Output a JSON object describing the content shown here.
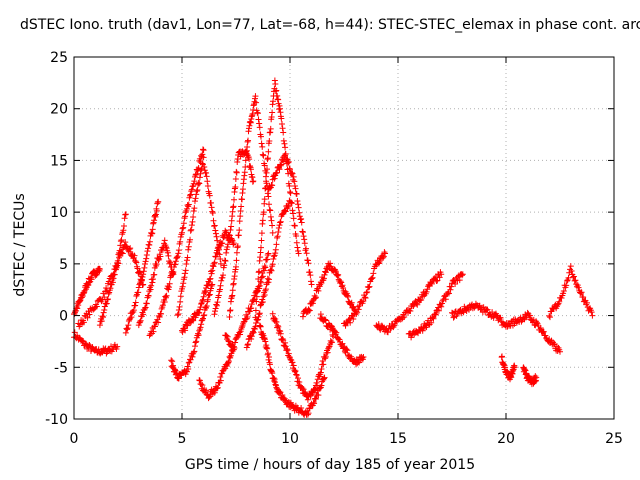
{
  "chart_data": {
    "type": "scatter",
    "title": "dSTEC Iono. truth (dav1, Lon=77, Lat=-68, h=44): STEC-STEC_elemax in phase cont. arc",
    "xlabel": "GPS time / hours of day 185 of year 2015",
    "ylabel": "dSTEC  / TECUs",
    "xlim": [
      0,
      25
    ],
    "ylim": [
      -10,
      25
    ],
    "xticks": [
      "0",
      "5",
      "10",
      "15",
      "20",
      "25"
    ],
    "yticks": [
      "-10",
      "-5",
      "0",
      "5",
      "10",
      "15",
      "20",
      "25"
    ],
    "grid": true,
    "marker": "+",
    "color": "#ff0000",
    "series": [
      {
        "x": [
          0.0,
          0.5,
          1.0,
          1.5,
          2.0
        ],
        "y": [
          -1.8,
          -2.8,
          -3.5,
          -3.4,
          -3.0
        ]
      },
      {
        "x": [
          0.0,
          0.3,
          0.6,
          0.9,
          1.2
        ],
        "y": [
          0.2,
          1.5,
          3.0,
          4.0,
          4.5
        ]
      },
      {
        "x": [
          0.2,
          0.8,
          1.4,
          2.0,
          2.4
        ],
        "y": [
          -1.0,
          0.5,
          2.0,
          5.0,
          9.8
        ]
      },
      {
        "x": [
          1.2,
          1.6,
          2.0,
          2.4,
          2.8,
          3.2
        ],
        "y": [
          -1.0,
          2.0,
          5.0,
          7.0,
          5.5,
          3.0
        ]
      },
      {
        "x": [
          2.4,
          2.8,
          3.2,
          3.6,
          3.9
        ],
        "y": [
          -1.5,
          1.0,
          4.0,
          8.0,
          11.0
        ]
      },
      {
        "x": [
          3.0,
          3.4,
          3.8,
          4.2,
          4.6
        ],
        "y": [
          -1.0,
          1.5,
          5.0,
          7.0,
          4.0
        ]
      },
      {
        "x": [
          3.5,
          4.0,
          4.4,
          4.8,
          5.2,
          5.6,
          6.0
        ],
        "y": [
          -2.0,
          0.0,
          3.0,
          6.0,
          10.0,
          13.5,
          16.0
        ]
      },
      {
        "x": [
          4.5,
          4.8,
          5.2,
          5.6,
          6.0,
          6.4
        ],
        "y": [
          -4.5,
          -6.0,
          -5.5,
          -3.0,
          0.0,
          3.0
        ]
      },
      {
        "x": [
          4.8,
          5.2,
          5.6,
          6.0,
          6.4,
          6.8
        ],
        "y": [
          0.0,
          5.0,
          11.0,
          15.0,
          10.0,
          5.0
        ]
      },
      {
        "x": [
          5.0,
          5.4,
          5.8,
          6.2,
          6.6,
          7.0,
          7.4
        ],
        "y": [
          -1.5,
          -0.5,
          0.5,
          3.0,
          6.0,
          8.0,
          7.0
        ]
      },
      {
        "x": [
          5.8,
          6.2,
          6.6,
          7.0,
          7.4
        ],
        "y": [
          -6.5,
          -7.8,
          -7.0,
          -5.0,
          -3.0
        ]
      },
      {
        "x": [
          6.5,
          6.9,
          7.3,
          7.6,
          8.0,
          8.3
        ],
        "y": [
          0.0,
          4.0,
          9.0,
          15.5,
          16.0,
          13.0
        ]
      },
      {
        "x": [
          7.2,
          7.5,
          7.8,
          8.1,
          8.4,
          8.8,
          9.2
        ],
        "y": [
          0.0,
          5.0,
          12.0,
          18.0,
          21.0,
          15.0,
          8.0
        ]
      },
      {
        "x": [
          7.0,
          7.4,
          7.8,
          8.2,
          8.6,
          9.0
        ],
        "y": [
          -2.0,
          -3.0,
          -1.0,
          1.0,
          3.0,
          6.0
        ]
      },
      {
        "x": [
          8.0,
          8.4,
          8.8,
          9.2,
          9.6,
          10.0
        ],
        "y": [
          -3.0,
          -1.0,
          2.0,
          5.0,
          9.5,
          11.0
        ]
      },
      {
        "x": [
          8.4,
          8.7,
          9.0,
          9.3,
          9.6,
          10.0,
          10.4
        ],
        "y": [
          0.0,
          8.0,
          16.0,
          22.5,
          19.0,
          12.0,
          6.0
        ]
      },
      {
        "x": [
          8.6,
          8.9,
          9.2,
          9.5,
          9.9,
          10.3,
          10.8,
          11.2,
          11.6
        ],
        "y": [
          -1.0,
          -3.0,
          -6.0,
          -7.5,
          -8.5,
          -9.0,
          -9.5,
          -8.0,
          -6.0
        ]
      },
      {
        "x": [
          9.2,
          9.6,
          10.0,
          10.4,
          10.8,
          11.2,
          11.6,
          12.0
        ],
        "y": [
          0.0,
          -2.0,
          -4.0,
          -6.5,
          -8.0,
          -7.0,
          -4.0,
          -2.0
        ]
      },
      {
        "x": [
          9.0,
          9.4,
          9.8,
          10.2,
          10.6,
          11.0
        ],
        "y": [
          12.0,
          14.0,
          15.5,
          13.0,
          8.0,
          3.0
        ]
      },
      {
        "x": [
          10.6,
          11.0,
          11.4,
          11.8,
          12.2,
          12.6,
          13.0
        ],
        "y": [
          0.0,
          1.0,
          3.0,
          5.0,
          4.0,
          2.0,
          0.5
        ]
      },
      {
        "x": [
          11.4,
          11.8,
          12.2,
          12.6,
          13.0,
          13.4
        ],
        "y": [
          0.0,
          -1.0,
          -2.0,
          -3.5,
          -4.5,
          -4.0
        ]
      },
      {
        "x": [
          12.5,
          13.0,
          13.5,
          14.0,
          14.4
        ],
        "y": [
          -1.0,
          0.0,
          2.0,
          5.0,
          6.0
        ]
      },
      {
        "x": [
          14.0,
          14.5,
          15.0,
          15.5,
          16.0,
          16.5,
          17.0
        ],
        "y": [
          -1.0,
          -1.5,
          -0.5,
          0.5,
          1.5,
          3.0,
          4.0
        ]
      },
      {
        "x": [
          15.5,
          16.0,
          16.5,
          17.0,
          17.5,
          18.0
        ],
        "y": [
          -2.0,
          -1.5,
          -0.5,
          1.0,
          3.0,
          4.0
        ]
      },
      {
        "x": [
          17.5,
          18.0,
          18.5,
          19.0,
          19.5,
          20.0
        ],
        "y": [
          0.0,
          0.5,
          1.0,
          0.5,
          0.0,
          -1.0
        ]
      },
      {
        "x": [
          19.8,
          20.0,
          20.2,
          20.4
        ],
        "y": [
          -4.0,
          -5.5,
          -6.0,
          -5.0
        ]
      },
      {
        "x": [
          20.8,
          21.0,
          21.2,
          21.4
        ],
        "y": [
          -5.0,
          -6.0,
          -6.5,
          -6.0
        ]
      },
      {
        "x": [
          20.0,
          20.5,
          21.0,
          21.5,
          22.0,
          22.5
        ],
        "y": [
          -1.0,
          -0.5,
          0.0,
          -1.0,
          -2.5,
          -3.5
        ]
      },
      {
        "x": [
          22.0,
          22.5,
          23.0,
          23.5,
          24.0
        ],
        "y": [
          0.0,
          1.5,
          4.5,
          2.0,
          0.0
        ]
      }
    ]
  }
}
